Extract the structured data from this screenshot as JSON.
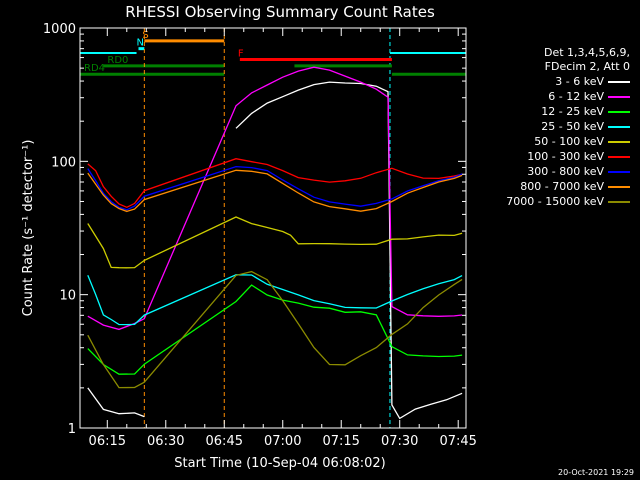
{
  "chart_data": {
    "type": "line",
    "title": "RHESSI Observing Summary Count Rates",
    "xlabel": "Start Time (10-Sep-04 06:08:02)",
    "ylabel": "Count Rate (s⁻¹ detector⁻¹)",
    "yscale": "log",
    "ylim": [
      1,
      1000
    ],
    "xlim_minutes": [
      8,
      107
    ],
    "x_ticks": [
      "06:15",
      "06:30",
      "06:45",
      "07:00",
      "07:15",
      "07:30",
      "07:45"
    ],
    "y_ticks": [
      "1",
      "10",
      "100",
      "1000"
    ],
    "legend_header": [
      "Det 1,3,4,5,6,9,",
      "FDecim 2, Att 0"
    ],
    "series": [
      {
        "name": "3 - 6 keV",
        "color": "#ffffff",
        "x": [
          10,
          14,
          18,
          22,
          24.5,
          35,
          40,
          45,
          48,
          52,
          56,
          60,
          64,
          68,
          72,
          76,
          80,
          84,
          87,
          88,
          90,
          94,
          98,
          102,
          106
        ],
        "y": [
          2,
          1.4,
          1.3,
          1.3,
          1.2,
          null,
          null,
          null,
          180,
          230,
          270,
          300,
          340,
          380,
          400,
          390,
          380,
          360,
          330,
          1.5,
          1.2,
          1.4,
          1.5,
          1.6,
          1.8
        ]
      },
      {
        "name": "6 - 12 keV",
        "color": "#ff00ff",
        "x": [
          10,
          14,
          18,
          22,
          24.5,
          48,
          52,
          56,
          60,
          64,
          68,
          72,
          76,
          80,
          84,
          87,
          88,
          92,
          96,
          100,
          104,
          106
        ],
        "y": [
          7,
          6,
          5.5,
          6,
          6.5,
          260,
          330,
          380,
          430,
          470,
          500,
          480,
          440,
          400,
          350,
          300,
          8,
          7,
          7,
          7,
          7,
          7
        ]
      },
      {
        "name": "12 - 25 keV",
        "color": "#00ff00",
        "x": [
          10,
          14,
          18,
          22,
          24.5,
          48,
          52,
          56,
          60,
          64,
          68,
          72,
          76,
          80,
          84,
          88,
          92,
          96,
          100,
          104,
          106
        ],
        "y": [
          4,
          3,
          2.5,
          2.5,
          3,
          9,
          12,
          10,
          9,
          8.5,
          8,
          8,
          7.5,
          7.5,
          7,
          4,
          3.5,
          3.5,
          3.5,
          3.5,
          3.5
        ]
      },
      {
        "name": "25 - 50 keV",
        "color": "#00ffff",
        "x": [
          10,
          12,
          14,
          16,
          18,
          20,
          22,
          24.5,
          48,
          52,
          56,
          60,
          64,
          68,
          72,
          76,
          80,
          84,
          88,
          92,
          96,
          100,
          104,
          106
        ],
        "y": [
          14,
          10,
          7,
          6.5,
          6,
          6,
          6,
          7,
          14,
          14,
          12,
          11,
          10,
          9,
          8.5,
          8,
          8,
          8,
          9,
          10,
          11,
          12,
          13,
          14
        ]
      },
      {
        "name": "50 - 100 keV",
        "color": "#cccc00",
        "x": [
          10,
          14,
          16,
          18,
          20,
          22,
          24.5,
          48,
          52,
          56,
          60,
          62,
          64,
          68,
          72,
          76,
          80,
          84,
          88,
          92,
          96,
          100,
          104,
          106
        ],
        "y": [
          34,
          22,
          16,
          16,
          16,
          16,
          18,
          38,
          34,
          32,
          30,
          28,
          24,
          24,
          24,
          24,
          24,
          24,
          26,
          26,
          27,
          28,
          28,
          29
        ]
      },
      {
        "name": "100 - 300 keV",
        "color": "#ff0000",
        "x": [
          10,
          12,
          14,
          16,
          18,
          20,
          22,
          24.5,
          48,
          52,
          56,
          60,
          64,
          68,
          72,
          76,
          80,
          84,
          88,
          92,
          96,
          100,
          104,
          106
        ],
        "y": [
          95,
          85,
          65,
          55,
          48,
          45,
          48,
          60,
          105,
          100,
          95,
          85,
          75,
          72,
          70,
          72,
          75,
          82,
          88,
          80,
          75,
          75,
          78,
          80
        ]
      },
      {
        "name": "300 - 800 keV",
        "color": "#0000ff",
        "x": [
          10,
          12,
          14,
          16,
          18,
          20,
          22,
          24.5,
          48,
          52,
          56,
          60,
          64,
          68,
          72,
          76,
          80,
          84,
          88,
          92,
          96,
          100,
          104,
          106
        ],
        "y": [
          88,
          72,
          58,
          50,
          45,
          43,
          46,
          55,
          92,
          90,
          85,
          72,
          62,
          54,
          50,
          48,
          46,
          48,
          52,
          60,
          66,
          72,
          76,
          80
        ]
      },
      {
        "name": "800 - 7000 keV",
        "color": "#ff8c00",
        "x": [
          10,
          12,
          14,
          16,
          18,
          20,
          22,
          24.5,
          48,
          52,
          56,
          60,
          64,
          68,
          72,
          76,
          80,
          84,
          88,
          92,
          96,
          100,
          104,
          106
        ],
        "y": [
          82,
          68,
          56,
          48,
          44,
          42,
          44,
          52,
          86,
          84,
          80,
          68,
          58,
          50,
          46,
          44,
          42,
          44,
          50,
          58,
          64,
          70,
          74,
          78
        ]
      },
      {
        "name": "7000 - 15000 keV",
        "color": "#8b8b00",
        "x": [
          10,
          14,
          18,
          22,
          24.5,
          48,
          52,
          56,
          60,
          64,
          68,
          72,
          76,
          80,
          84,
          88,
          92,
          96,
          100,
          104,
          106
        ],
        "y": [
          5,
          3,
          2,
          2,
          2.2,
          14,
          15,
          13,
          9,
          6,
          4,
          3,
          3,
          3.5,
          4,
          5,
          6,
          8,
          10,
          12,
          13
        ]
      }
    ],
    "state_bars": [
      {
        "label": "S",
        "color": "#ff8c00",
        "x": [
          24.5,
          45
        ],
        "level": 800
      },
      {
        "label": "N",
        "color": "#00ffff",
        "x": [
          23,
          24.5
        ],
        "level": 700
      },
      {
        "label": "F",
        "color": "#ff0000",
        "x": [
          49,
          88
        ],
        "level": 580
      },
      {
        "label": "RD0",
        "color": "#008000",
        "x": [
          14,
          45,
          63,
          88
        ],
        "level": 520
      },
      {
        "label": "RD4",
        "color": "#008000",
        "x": [
          8,
          45,
          88,
          107
        ],
        "level": 450
      }
    ],
    "shaded_intervals": [
      {
        "color": "#00ffff",
        "x": [
          8,
          22.5
        ]
      },
      {
        "color": "#00ffff",
        "x": [
          87.5,
          107
        ]
      }
    ],
    "footer": "20-Oct-2021 19:29"
  }
}
